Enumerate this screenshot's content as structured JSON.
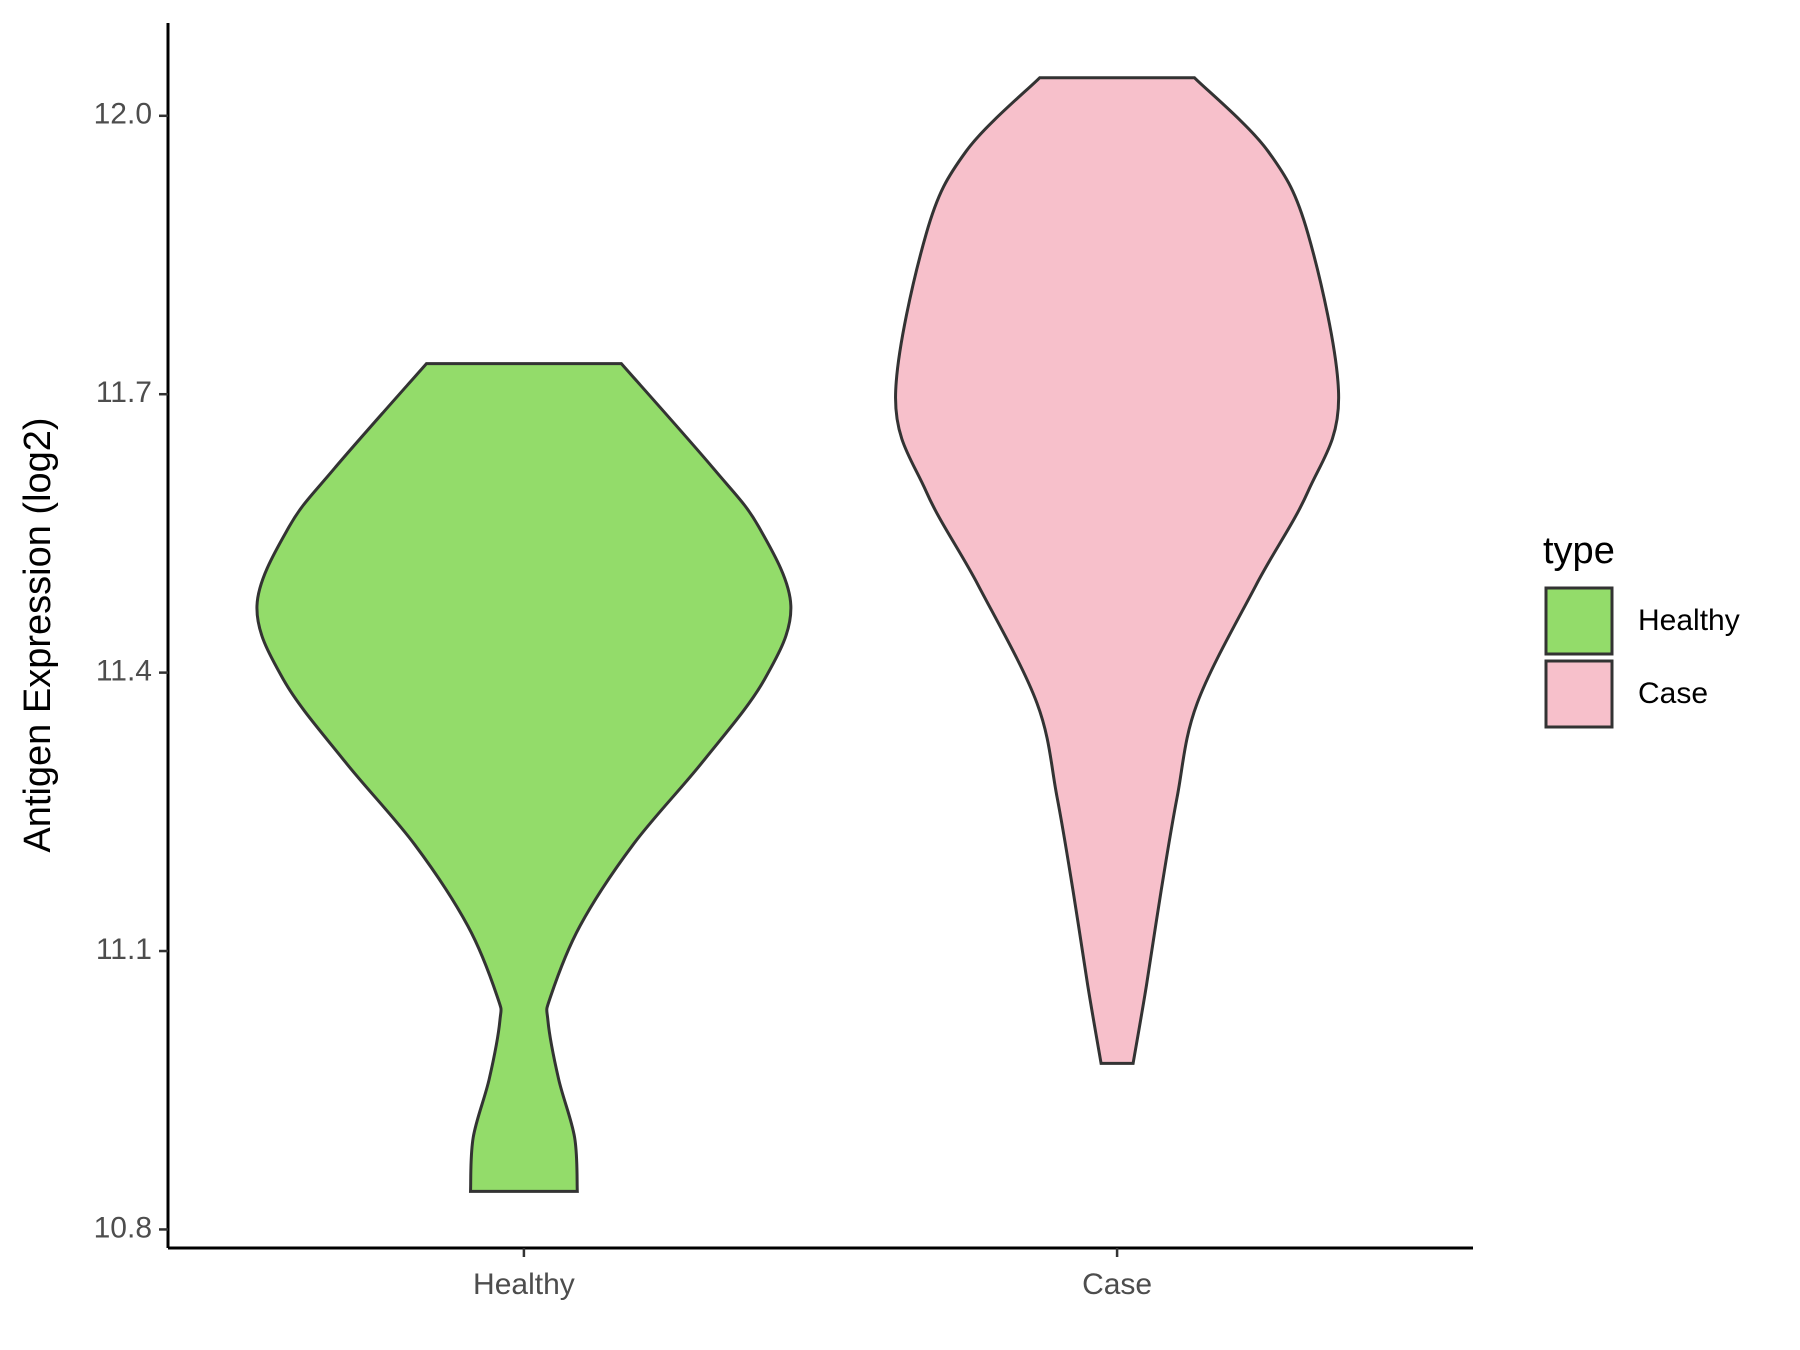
{
  "chart_data": {
    "type": "violin",
    "y_label": "Antigen Expression (log2)",
    "categories": [
      "Healthy",
      "Case"
    ],
    "legend_title": "type",
    "legend_position": "right",
    "series": [
      {
        "name": "Healthy",
        "color": "#93dc6a",
        "y": [
          11.733,
          11.62,
          11.557,
          11.472,
          11.392,
          11.304,
          11.215,
          11.127,
          11.051,
          11.025,
          10.962,
          10.899,
          10.841
        ],
        "width": [
          0.365,
          0.71,
          0.88,
          1.0,
          0.9,
          0.67,
          0.41,
          0.21,
          0.1,
          0.09,
          0.13,
          0.19,
          0.2
        ]
      },
      {
        "name": "Case",
        "color": "#f7c0cb",
        "y": [
          12.041,
          11.962,
          11.873,
          11.696,
          11.595,
          11.494,
          11.367,
          11.266,
          11.165,
          11.063,
          10.979
        ],
        "width": [
          0.29,
          0.565,
          0.715,
          0.83,
          0.715,
          0.52,
          0.3,
          0.225,
          0.165,
          0.11,
          0.06
        ]
      }
    ],
    "ylim": [
      10.78,
      12.1
    ],
    "yticks": [
      {
        "value": 10.8,
        "label": "10.8"
      },
      11.1,
      11.4,
      11.7,
      {
        "value": 12.0,
        "label": "12.0"
      }
    ]
  }
}
